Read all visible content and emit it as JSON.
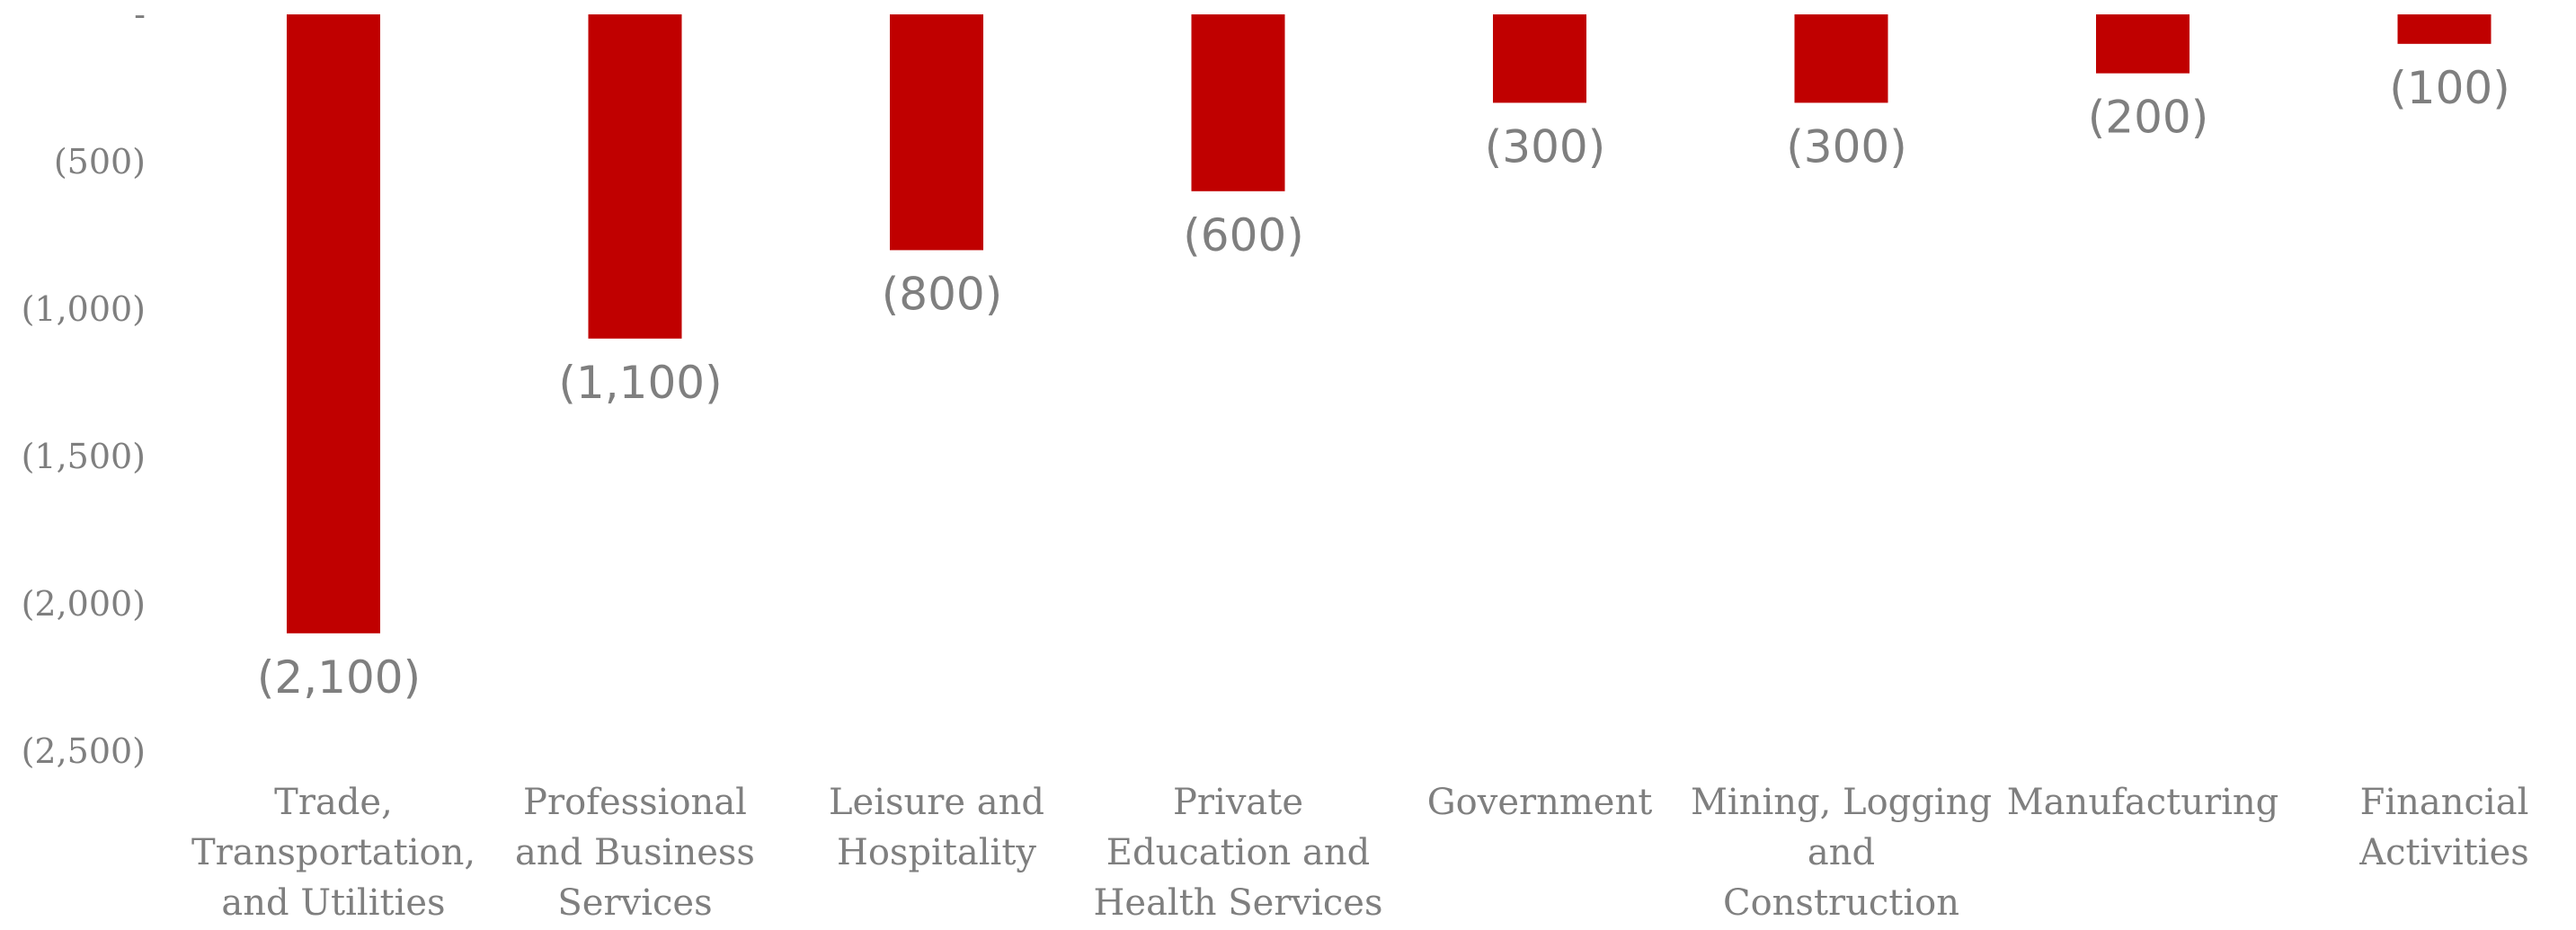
{
  "chart_data": {
    "type": "bar",
    "title": "",
    "xlabel": "",
    "ylabel": "",
    "ylim": [
      -2500,
      0
    ],
    "yticks": [
      {
        "value": 0,
        "label": "-"
      },
      {
        "value": -500,
        "label": "(500)"
      },
      {
        "value": -1000,
        "label": "(1,000)"
      },
      {
        "value": -1500,
        "label": "(1,500)"
      },
      {
        "value": -2000,
        "label": "(2,000)"
      },
      {
        "value": -2500,
        "label": "(2,500)"
      }
    ],
    "grid": false,
    "legend": "none",
    "bar_color": "#c00000",
    "text_color": "#7f7f7f",
    "categories": [
      "Trade, Transportation, and Utilities",
      "Professional and Business Services",
      "Leisure and Hospitality",
      "Private Education and Health Services",
      "Government",
      "Mining, Logging and Construction",
      "Manufacturing",
      "Financial Activities"
    ],
    "category_lines": [
      [
        "Trade,",
        "Transportation,",
        "and Utilities"
      ],
      [
        "Professional",
        "and Business",
        "Services"
      ],
      [
        "Leisure and",
        "Hospitality"
      ],
      [
        "Private",
        "Education and",
        "Health Services"
      ],
      [
        "Government"
      ],
      [
        "Mining, Logging",
        "and",
        "Construction"
      ],
      [
        "Manufacturing"
      ],
      [
        "Financial",
        "Activities"
      ]
    ],
    "values": [
      -2100,
      -1100,
      -800,
      -600,
      -300,
      -300,
      -200,
      -100
    ],
    "data_labels": [
      "(2,100)",
      "(1,100)",
      "(800)",
      "(600)",
      "(300)",
      "(300)",
      "(200)",
      "(100)"
    ]
  }
}
